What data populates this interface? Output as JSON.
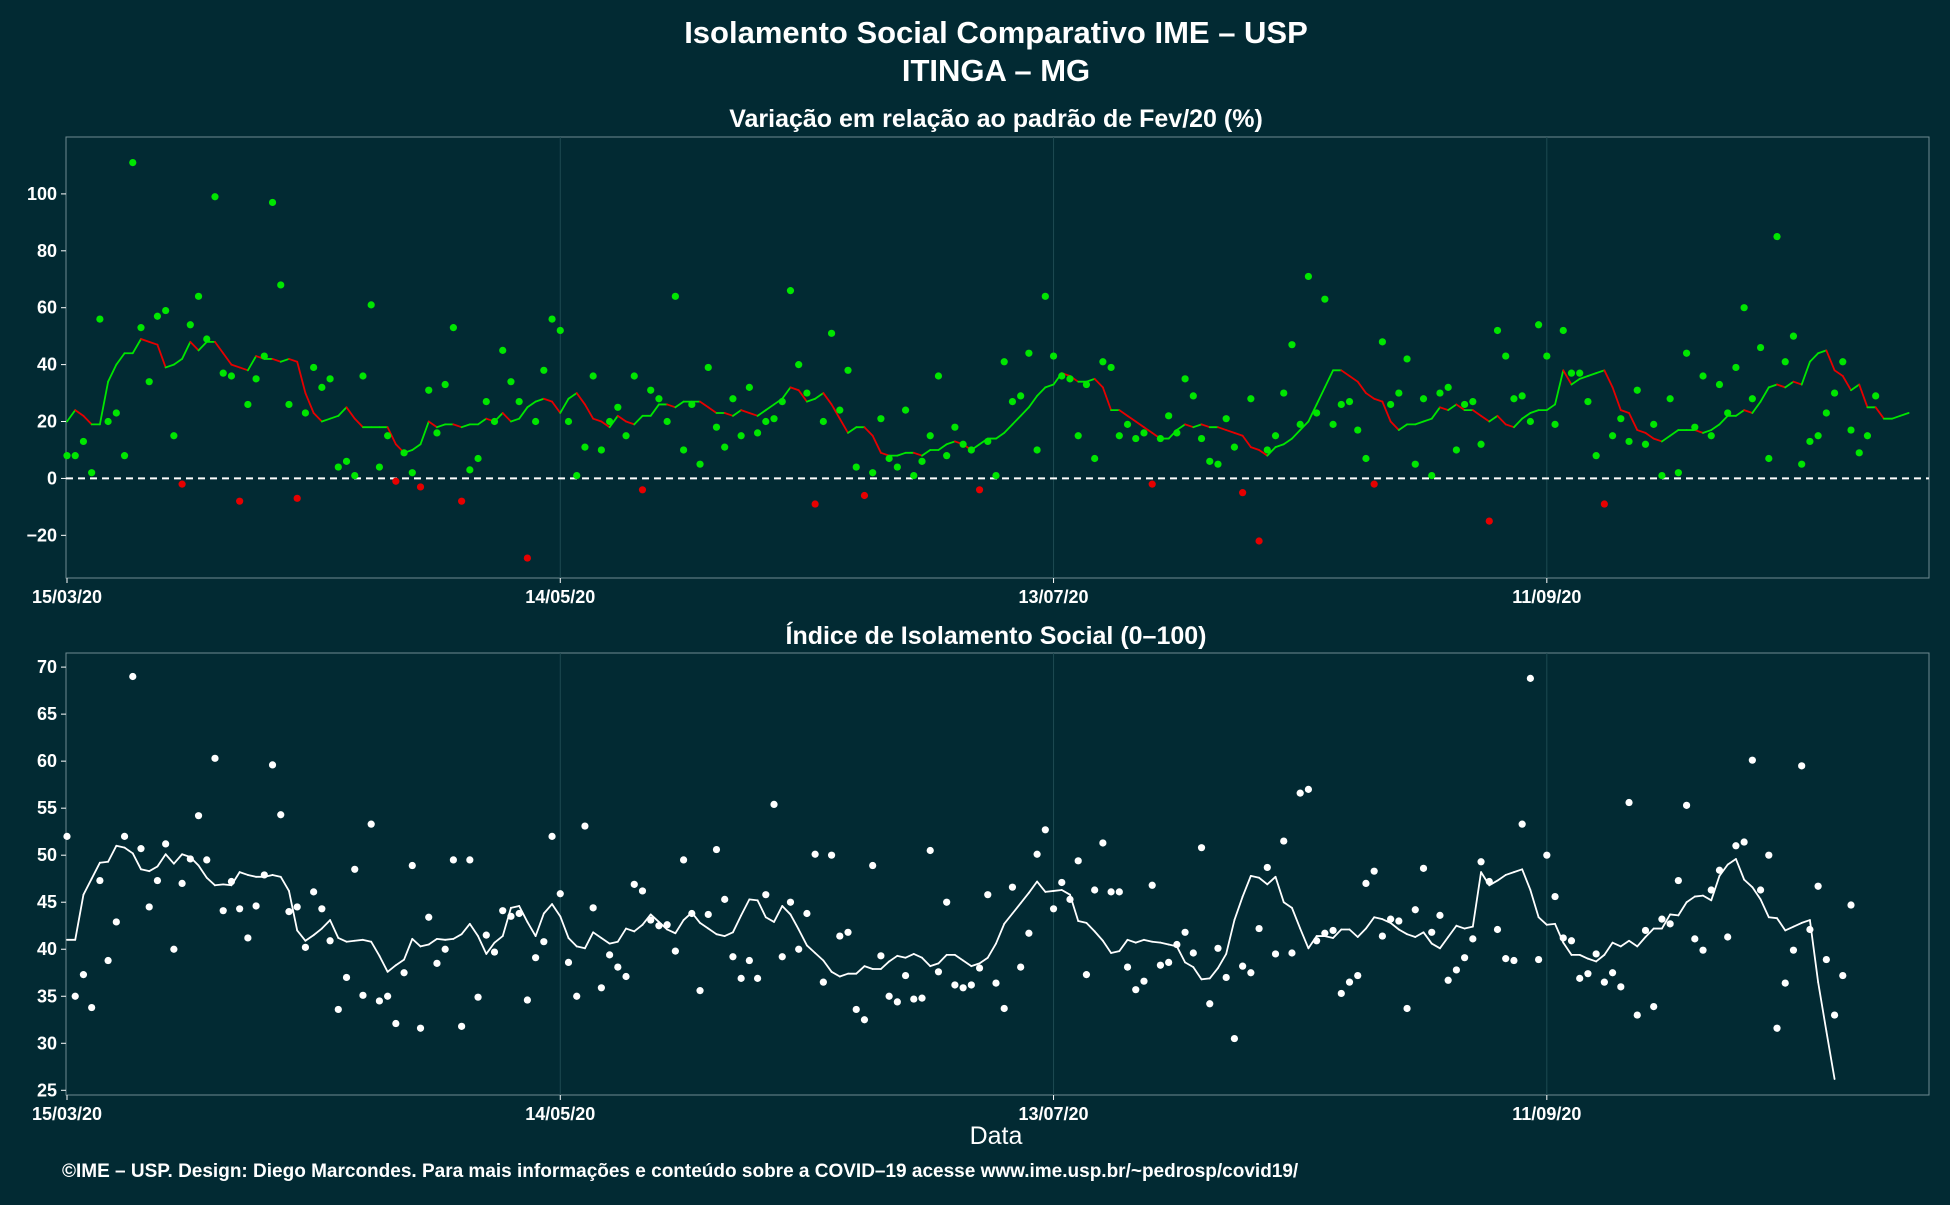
{
  "header": {
    "title_line1": "Isolamento Social Comparativo IME – USP",
    "title_line2": "ITINGA – MG"
  },
  "footer": {
    "xlabel": "Data",
    "credit": "©IME – USP. Design: Diego Marcondes. Para mais informações e conteúdo sobre a COVID–19 acesse www.ime.usp.br/~pedrosp/covid19/"
  },
  "colors": {
    "background": "#022a33",
    "panel": "#022a33",
    "grid": "#1e4a52",
    "positive": "#00e600",
    "negative": "#e60000",
    "index": "#ffffff"
  },
  "chart_data": [
    {
      "type": "line",
      "title": "Variação em relação ao padrão de Fev/20 (%)",
      "xlabel": "",
      "ylabel": "",
      "x_start": "15/03/20",
      "x_ticks": [
        "15/03/20",
        "14/05/20",
        "13/07/20",
        "11/09/20"
      ],
      "y_ticks": [
        "−20",
        "0",
        "20",
        "40",
        "60",
        "80",
        "100"
      ],
      "ylim": [
        -35,
        120
      ],
      "reference_line": 0,
      "series": [
        {
          "kind": "points",
          "values": [
            8,
            8,
            13,
            2,
            56,
            20,
            23,
            8,
            111,
            53,
            34,
            57,
            59,
            15,
            -2,
            54,
            64,
            49,
            99,
            37,
            36,
            -8,
            26,
            35,
            43,
            97,
            68,
            26,
            -7,
            23,
            39,
            32,
            35,
            4,
            6,
            1,
            36,
            61,
            4,
            15,
            -1,
            9,
            2,
            -3,
            31,
            16,
            33,
            53,
            -8,
            3,
            7,
            27,
            20,
            45,
            34,
            27,
            -28,
            20,
            38,
            56,
            52,
            20,
            1,
            11,
            36,
            10,
            20,
            25,
            15,
            36,
            -4,
            31,
            28,
            20,
            64,
            10,
            26,
            5,
            39,
            18,
            11,
            28,
            15,
            32,
            16,
            20,
            21,
            27,
            66,
            40,
            30,
            -9,
            20,
            51,
            24,
            38,
            4,
            -6,
            2,
            21,
            7,
            4,
            24,
            1,
            6,
            15,
            36,
            8,
            18,
            12,
            10,
            -4,
            13,
            1,
            41,
            27,
            29,
            44,
            10,
            64,
            43,
            36,
            35,
            15,
            33,
            7,
            41,
            39,
            15,
            19,
            14,
            16,
            -2,
            14,
            22,
            16,
            35,
            29,
            14,
            6,
            5,
            21,
            11,
            -5,
            28,
            -22,
            10,
            15,
            30,
            47,
            19,
            71,
            23,
            63,
            19,
            26,
            27,
            17,
            7,
            -2,
            48,
            26,
            30,
            42,
            5,
            28,
            1,
            30,
            32,
            10,
            26,
            27,
            12,
            -15,
            52,
            43,
            28,
            29,
            20,
            54,
            43,
            19,
            52,
            37,
            37,
            27,
            8,
            -9,
            15,
            21,
            13,
            31,
            12,
            19,
            1,
            28,
            2,
            44,
            18,
            36,
            15,
            33,
            23,
            39,
            60,
            28,
            46,
            7,
            85,
            41,
            50,
            5,
            13,
            15,
            23,
            30,
            41,
            17,
            9,
            15,
            29
          ]
        },
        {
          "kind": "moving-average",
          "values": [
            20,
            24,
            22,
            19,
            19,
            34,
            40,
            44,
            44,
            49,
            48,
            47,
            39,
            40,
            42,
            48,
            45,
            48,
            48,
            44,
            40,
            39,
            38,
            43,
            42,
            42,
            41,
            42,
            41,
            30,
            23,
            20,
            21,
            22,
            25,
            21,
            18,
            18,
            18,
            18,
            12,
            9,
            10,
            12,
            20,
            18,
            19,
            19,
            18,
            19,
            19,
            21,
            20,
            23,
            20,
            21,
            25,
            27,
            28,
            27,
            23,
            28,
            30,
            26,
            21,
            20,
            18,
            22,
            20,
            19,
            22,
            22,
            26,
            26,
            25,
            27,
            27,
            27,
            25,
            23,
            23,
            22,
            24,
            23,
            22,
            24,
            26,
            28,
            32,
            31,
            27,
            28,
            30,
            26,
            21,
            16,
            18,
            18,
            15,
            9,
            8,
            8,
            9,
            9,
            8,
            10,
            10,
            12,
            13,
            12,
            10,
            12,
            14,
            14,
            16,
            19,
            22,
            25,
            29,
            32,
            33,
            37,
            36,
            34,
            34,
            35,
            32,
            24,
            24,
            22,
            20,
            18,
            16,
            14,
            14,
            17,
            19,
            18,
            19,
            18,
            18,
            17,
            16,
            15,
            11,
            10,
            8,
            11,
            12,
            14,
            17,
            20,
            26,
            32,
            38,
            38,
            36,
            34,
            30,
            28,
            27,
            20,
            17,
            19,
            19,
            20,
            21,
            25,
            24,
            26,
            24,
            24,
            22,
            20,
            22,
            19,
            18,
            21,
            23,
            24,
            24,
            26,
            38,
            33,
            35,
            36,
            37,
            38,
            32,
            24,
            23,
            17,
            16,
            14,
            13,
            15,
            17,
            17,
            17,
            16,
            17,
            19,
            22,
            22,
            24,
            23,
            27,
            32,
            33,
            32,
            34,
            33,
            41,
            44,
            45,
            38,
            36,
            31,
            33,
            25,
            25,
            21,
            21,
            22,
            23
          ]
        }
      ]
    },
    {
      "type": "line",
      "title": "Índice de Isolamento Social (0–100)",
      "xlabel": "Data",
      "ylabel": "",
      "x_start": "15/03/20",
      "x_ticks": [
        "15/03/20",
        "14/05/20",
        "13/07/20",
        "11/09/20"
      ],
      "y_ticks": [
        "25",
        "30",
        "35",
        "40",
        "45",
        "50",
        "55",
        "60",
        "65",
        "70"
      ],
      "ylim": [
        24.5,
        71.5
      ],
      "series": [
        {
          "kind": "points",
          "values": [
            52,
            35,
            37.3,
            33.8,
            47.3,
            38.8,
            42.9,
            52,
            69,
            50.7,
            44.5,
            47.3,
            51.2,
            40,
            47,
            49.6,
            54.2,
            49.5,
            60.3,
            44.1,
            47.2,
            44.3,
            41.2,
            44.6,
            47.9,
            59.6,
            54.3,
            44,
            44.5,
            40.2,
            46.1,
            44.3,
            40.9,
            33.6,
            37,
            48.5,
            35.1,
            53.3,
            34.5,
            35,
            32.1,
            37.5,
            48.9,
            31.6,
            43.4,
            38.5,
            40,
            49.5,
            31.8,
            49.5,
            34.9,
            41.5,
            39.7,
            44.1,
            43.5,
            43.8,
            34.6,
            39.1,
            40.8,
            52,
            45.9,
            38.6,
            35,
            53.1,
            44.4,
            35.9,
            39.4,
            38.1,
            37.1,
            46.9,
            46.2,
            43.1,
            42.5,
            42.6,
            39.8,
            49.5,
            43.8,
            35.6,
            43.7,
            50.6,
            45.3,
            39.2,
            36.9,
            38.8,
            36.9,
            45.8,
            55.4,
            39.2,
            45,
            40,
            43.8,
            50.1,
            36.5,
            50,
            41.4,
            41.8,
            33.6,
            32.5,
            48.9,
            39.3,
            35,
            34.4,
            37.2,
            34.7,
            34.8,
            50.5,
            37.6,
            45,
            36.2,
            35.9,
            36.2,
            38,
            45.8,
            36.4,
            33.7,
            46.6,
            38.1,
            41.7,
            50.1,
            52.7,
            44.3,
            47.1,
            45.3,
            49.4,
            37.3,
            46.3,
            51.3,
            46.1,
            46.1,
            38.1,
            35.7,
            36.6,
            46.8,
            38.3,
            38.6,
            40.5,
            41.8,
            39.6,
            50.8,
            34.2,
            40.1,
            37,
            30.5,
            38.2,
            37.5,
            42.2,
            48.7,
            39.5,
            51.5,
            39.6,
            56.6,
            57,
            40.9,
            41.7,
            42,
            35.3,
            36.5,
            37.2,
            47,
            48.3,
            41.4,
            43.2,
            43,
            33.7,
            44.2,
            48.6,
            41.8,
            43.6,
            36.7,
            37.8,
            39.1,
            41.1,
            49.3,
            47.2,
            42.1,
            39,
            38.8,
            53.3,
            68.8,
            38.9,
            50,
            45.6,
            41.2,
            40.9,
            36.9,
            37.4,
            39.5,
            36.5,
            37.5,
            36,
            55.6,
            33,
            42,
            33.9,
            43.2,
            42.7,
            47.3,
            55.3,
            41.1,
            39.9,
            46.3,
            48.4,
            41.3,
            51,
            51.4,
            60.1,
            46.3,
            50,
            31.6,
            36.4,
            39.9,
            59.5,
            42.1,
            46.7,
            38.9,
            33,
            37.2,
            44.7
          ]
        },
        {
          "kind": "moving-average",
          "values": [
            41,
            41,
            45.8,
            47.5,
            49.2,
            49.3,
            51,
            50.8,
            50.2,
            48.5,
            48.3,
            48.8,
            50.1,
            49.1,
            50.1,
            49.8,
            48.9,
            47.6,
            46.8,
            46.9,
            46.8,
            48.2,
            47.9,
            47.7,
            47.7,
            47.9,
            47.7,
            46.2,
            42,
            40.9,
            41.5,
            42.2,
            43.1,
            41.2,
            40.8,
            40.9,
            41,
            40.8,
            39.3,
            37.6,
            38.3,
            38.9,
            41.1,
            40.3,
            40.5,
            41.1,
            41,
            41.1,
            41.6,
            42.7,
            41.4,
            39.5,
            40.7,
            41.4,
            44.4,
            44.6,
            42.9,
            41.4,
            43.8,
            44.8,
            43.5,
            41.2,
            40.3,
            40.1,
            41.8,
            41.2,
            40.6,
            40.8,
            42.2,
            41.9,
            42.6,
            43.7,
            42.9,
            42.1,
            41.7,
            43.1,
            43.9,
            42.8,
            42.2,
            41.6,
            41.4,
            41.8,
            43.6,
            45.3,
            45.2,
            43.4,
            42.9,
            44.6,
            43.7,
            42.1,
            40.4,
            39.6,
            38.8,
            37.6,
            37.1,
            37.4,
            37.4,
            38.2,
            37.9,
            37.9,
            38.7,
            39.3,
            39.1,
            39.5,
            39.1,
            38.2,
            38.5,
            39.4,
            39.4,
            38.8,
            38.2,
            38.5,
            39.1,
            40.6,
            42.7,
            43.8,
            44.9,
            46,
            47.2,
            46.1,
            46.2,
            46.3,
            45.8,
            43,
            42.8,
            41.9,
            40.9,
            39.6,
            39.8,
            41,
            40.7,
            41,
            40.8,
            40.7,
            40.5,
            40.3,
            38.6,
            38.1,
            36.8,
            36.9,
            38,
            39.5,
            43.1,
            45.6,
            47.8,
            47.6,
            46.9,
            47.7,
            45,
            44.4,
            42.2,
            40.1,
            41.4,
            41.4,
            41.2,
            42.1,
            42.1,
            41.3,
            42.2,
            43.4,
            43.2,
            42.8,
            42.1,
            41.6,
            41.3,
            41.8,
            40.6,
            40.1,
            41.3,
            42.5,
            42.2,
            42.4,
            48.2,
            46.8,
            47.3,
            47.9,
            48.2,
            48.5,
            46.3,
            43.4,
            42.6,
            42.7,
            40.7,
            39.4,
            39.4,
            39,
            38.7,
            39.4,
            40.7,
            40.3,
            40.9,
            40.3,
            41.3,
            42.2,
            42.2,
            43.7,
            43.6,
            45,
            45.6,
            45.7,
            45.2,
            47.8,
            49,
            49.6,
            47.4,
            46.6,
            45.3,
            43.4,
            43.3,
            42,
            42.4,
            42.8,
            43.1,
            36.5,
            31.3,
            26.2
          ]
        }
      ]
    }
  ]
}
